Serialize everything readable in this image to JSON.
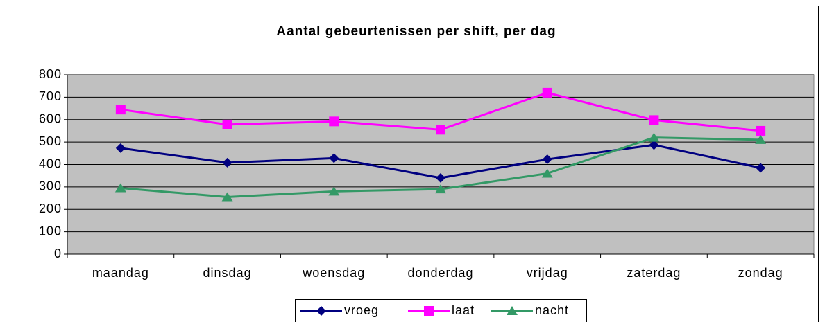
{
  "chart_data": {
    "type": "line",
    "title": "Aantal gebeurtenissen per shift, per dag",
    "categories": [
      "maandag",
      "dinsdag",
      "woensdag",
      "donderdag",
      "vrijdag",
      "zaterdag",
      "zondag"
    ],
    "series": [
      {
        "name": "vroeg",
        "color": "#000080",
        "marker": "diamond",
        "values": [
          473,
          408,
          428,
          340,
          423,
          487,
          385
        ]
      },
      {
        "name": "laat",
        "color": "#ff00ff",
        "marker": "square",
        "values": [
          645,
          578,
          592,
          555,
          720,
          598,
          550
        ]
      },
      {
        "name": "nacht",
        "color": "#339966",
        "marker": "triangle",
        "values": [
          295,
          255,
          280,
          290,
          360,
          520,
          510
        ]
      }
    ],
    "ylim": [
      0,
      800
    ],
    "yticks": [
      0,
      100,
      200,
      300,
      400,
      500,
      600,
      700,
      800
    ],
    "grid": true,
    "legend": "bottom"
  }
}
